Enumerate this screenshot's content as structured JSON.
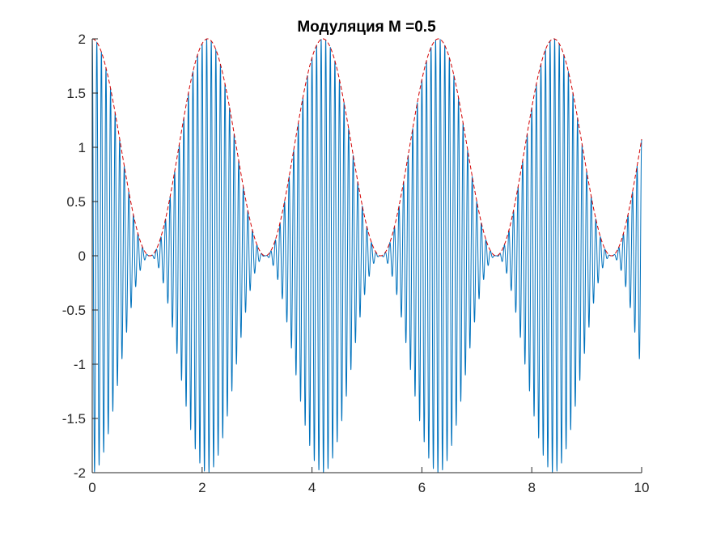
{
  "chart_data": {
    "type": "line",
    "title": "Модуляция M =0.5",
    "xlabel": "",
    "ylabel": "",
    "xlim": [
      0,
      10
    ],
    "ylim": [
      -2,
      2
    ],
    "x_ticks": [
      0,
      2,
      4,
      6,
      8,
      10
    ],
    "x_tick_labels": [
      "0",
      "2",
      "4",
      "6",
      "8",
      "10"
    ],
    "y_ticks": [
      2,
      1.5,
      1,
      0.5,
      0,
      -0.5,
      -1,
      -1.5,
      -2
    ],
    "y_tick_labels": [
      "2",
      "1.5",
      "1",
      "0.5",
      "0",
      "-0.5",
      "-1",
      "-1.5",
      "-2"
    ],
    "grid": false,
    "legend": "none",
    "series": [
      {
        "label": "modulated-signal",
        "style": "solid",
        "color": "#0072BD",
        "function": "(1 + cos(2*pi*0.477*x)) * cos(2*pi*12*x)",
        "x_range": [
          0,
          10
        ],
        "envelope_period": 2.1,
        "carrier_frequency": 12
      },
      {
        "label": "envelope",
        "style": "dashed",
        "color": "#D40000",
        "function": "1 + cos(2*pi*0.477*x)",
        "x_range": [
          0,
          10
        ],
        "envelope_period": 2.1
      }
    ]
  }
}
